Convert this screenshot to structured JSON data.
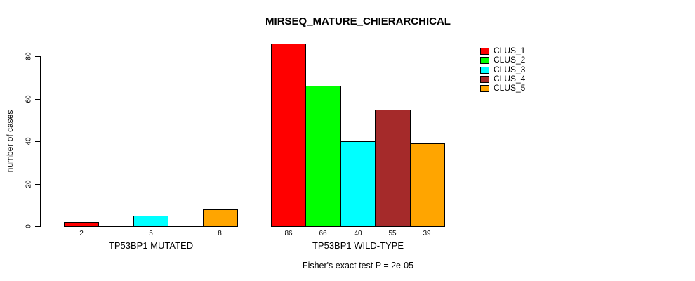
{
  "chart_data": {
    "type": "bar",
    "title": "MIRSEQ_MATURE_CHIERARCHICAL",
    "ylabel": "number of cases",
    "xlabel": "",
    "ylim": [
      0,
      88
    ],
    "yticks": [
      0,
      20,
      40,
      60,
      80
    ],
    "grid": false,
    "legend_position": "top-right",
    "legend": [
      {
        "label": "CLUS_1",
        "color": "#FF0000"
      },
      {
        "label": "CLUS_2",
        "color": "#00FF00"
      },
      {
        "label": "CLUS_3",
        "color": "#00FFFF"
      },
      {
        "label": "CLUS_4",
        "color": "#A52A2A"
      },
      {
        "label": "CLUS_5",
        "color": "#FFA500"
      }
    ],
    "groups": [
      {
        "label": "TP53BP1 MUTATED",
        "values": [
          2,
          0,
          5,
          0,
          8
        ],
        "bar_labels": [
          "2",
          "",
          "5",
          "",
          "8"
        ]
      },
      {
        "label": "TP53BP1 WILD-TYPE",
        "values": [
          86,
          66,
          40,
          55,
          39
        ],
        "bar_labels": [
          "86",
          "66",
          "40",
          "55",
          "39"
        ]
      }
    ],
    "annotation": "Fisher's exact test P = 2e-05",
    "colors": {
      "background": "#FFFFFF",
      "axis": "#000000",
      "bar_border": "#000000",
      "text": "#000000"
    }
  }
}
